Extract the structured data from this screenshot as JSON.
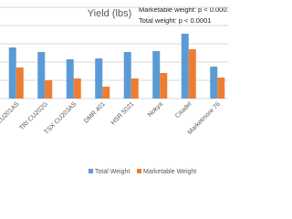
{
  "chart_data": {
    "type": "bar",
    "title": "Yield (lbs)",
    "annotations": [
      "Marketable weight: p < 0.0001",
      "Total weight: p < 0.0001"
    ],
    "categories": [
      "CU201AS",
      "TRI CU202G",
      "TSX CU203AS",
      "DMR 401",
      "HSR 5021",
      "Nokya",
      "Citadel",
      "Marketmore 76"
    ],
    "series": [
      {
        "name": "Total Weight",
        "color": "#5b9bd5",
        "values": [
          56,
          51,
          43,
          44,
          51,
          52,
          71,
          35
        ]
      },
      {
        "name": "Marketable Weight",
        "color": "#ed7d31",
        "values": [
          34,
          20,
          22,
          13,
          22,
          28,
          54,
          23
        ]
      }
    ],
    "ylim": [
      0,
      100
    ],
    "grid": true
  }
}
